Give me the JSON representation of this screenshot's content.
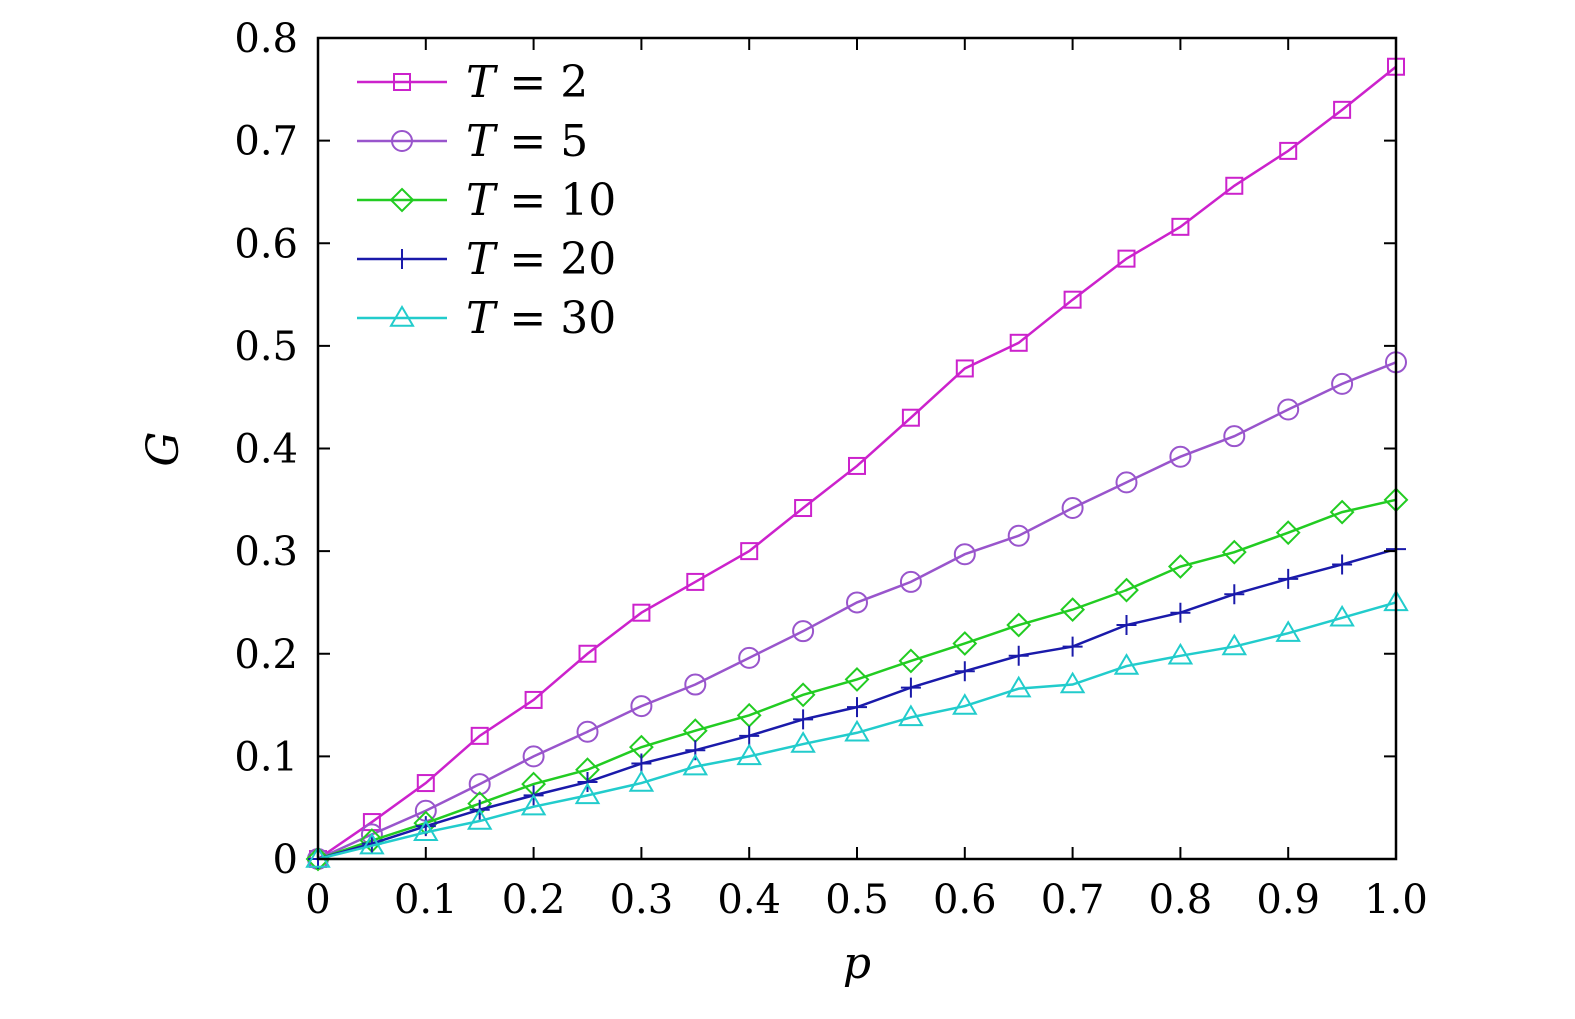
{
  "chart_data": {
    "type": "line",
    "title": "",
    "xlabel": "p",
    "ylabel": "G",
    "xlim": [
      0,
      1.0
    ],
    "ylim": [
      0,
      0.8
    ],
    "x_ticks": [
      "0",
      "0.1",
      "0.2",
      "0.3",
      "0.4",
      "0.5",
      "0.6",
      "0.7",
      "0.8",
      "0.9",
      "1.0"
    ],
    "y_ticks": [
      "0",
      "0.1",
      "0.2",
      "0.3",
      "0.4",
      "0.5",
      "0.6",
      "0.7",
      "0.8"
    ],
    "grid": false,
    "legend_position": "top-left",
    "x": [
      0,
      0.05,
      0.1,
      0.15,
      0.2,
      0.25,
      0.3,
      0.35,
      0.4,
      0.45,
      0.5,
      0.55,
      0.6,
      0.65,
      0.7,
      0.75,
      0.8,
      0.85,
      0.9,
      0.95,
      1.0
    ],
    "series": [
      {
        "name": "T = 2",
        "var": "T",
        "value_label": "2",
        "marker": "square",
        "color": "#cc22cc",
        "values": [
          0,
          0.036,
          0.074,
          0.12,
          0.155,
          0.2,
          0.24,
          0.27,
          0.3,
          0.342,
          0.383,
          0.43,
          0.478,
          0.503,
          0.545,
          0.585,
          0.616,
          0.656,
          0.69,
          0.73,
          0.772
        ]
      },
      {
        "name": "T = 5",
        "var": "T",
        "value_label": "5",
        "marker": "circle",
        "color": "#9955cc",
        "values": [
          0,
          0.024,
          0.047,
          0.073,
          0.1,
          0.124,
          0.149,
          0.17,
          0.196,
          0.222,
          0.25,
          0.27,
          0.297,
          0.315,
          0.342,
          0.367,
          0.392,
          0.412,
          0.438,
          0.463,
          0.484
        ]
      },
      {
        "name": "T = 10",
        "var": "T",
        "value_label": "10",
        "marker": "diamond",
        "color": "#22cc22",
        "values": [
          0,
          0.018,
          0.035,
          0.054,
          0.073,
          0.087,
          0.109,
          0.125,
          0.14,
          0.16,
          0.175,
          0.193,
          0.21,
          0.228,
          0.243,
          0.262,
          0.285,
          0.299,
          0.318,
          0.338,
          0.35
        ]
      },
      {
        "name": "T = 20",
        "var": "T",
        "value_label": "20",
        "marker": "plus",
        "color": "#1a1aaa",
        "values": [
          0,
          0.015,
          0.032,
          0.048,
          0.062,
          0.075,
          0.093,
          0.106,
          0.12,
          0.136,
          0.148,
          0.167,
          0.183,
          0.198,
          0.207,
          0.228,
          0.24,
          0.258,
          0.273,
          0.287,
          0.302
        ]
      },
      {
        "name": "T = 30",
        "var": "T",
        "value_label": "30",
        "marker": "triangle",
        "color": "#22cccc",
        "values": [
          0,
          0.013,
          0.026,
          0.037,
          0.051,
          0.062,
          0.074,
          0.09,
          0.1,
          0.112,
          0.123,
          0.138,
          0.149,
          0.166,
          0.17,
          0.188,
          0.198,
          0.207,
          0.22,
          0.235,
          0.25
        ]
      }
    ]
  }
}
